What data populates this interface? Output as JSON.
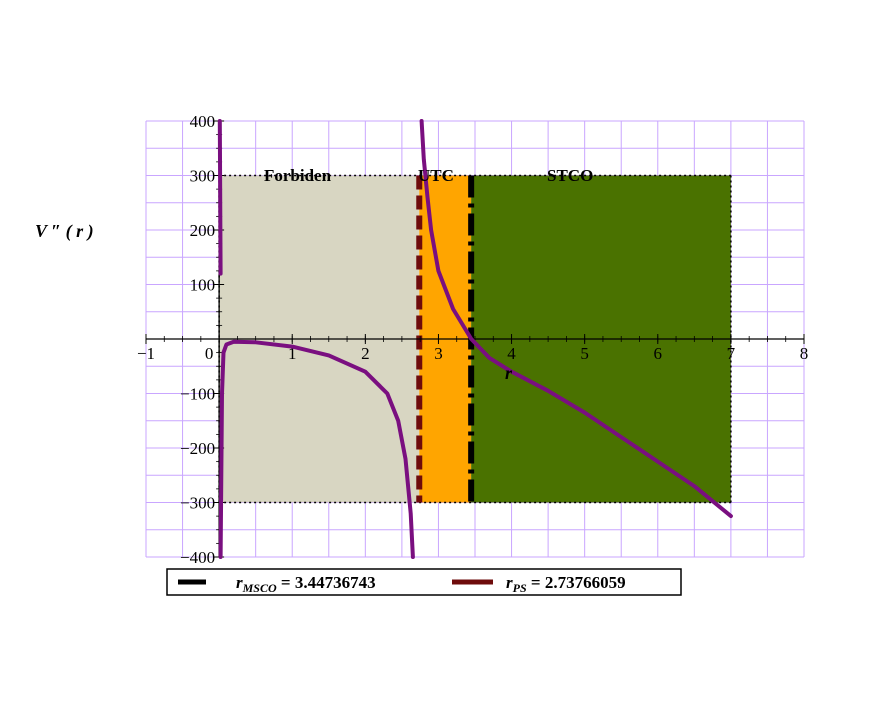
{
  "chart_data": {
    "type": "line",
    "xlabel": "r",
    "ylabel": "V ″ ( r )",
    "xlim": [
      -1,
      8
    ],
    "ylim": [
      -400,
      400
    ],
    "xticks": [
      -1,
      0,
      1,
      2,
      3,
      4,
      5,
      6,
      7,
      8
    ],
    "xtick_labels": [
      "−1",
      "0",
      "1",
      "2",
      "3",
      "4",
      "5",
      "6",
      "7",
      "8"
    ],
    "yticks": [
      -400,
      -300,
      -200,
      -100,
      100,
      200,
      300,
      400
    ],
    "ytick_labels": [
      "−400",
      "−300",
      "−200",
      "−100",
      "100",
      "200",
      "300",
      "400"
    ],
    "grid": true,
    "regions": [
      {
        "label": "Forbiden",
        "x": [
          0,
          2.73766059
        ],
        "y": [
          -300,
          300
        ],
        "color": "#d8d6c2"
      },
      {
        "label": "UTC",
        "x": [
          2.73766059,
          3.44736743
        ],
        "y": [
          -300,
          300
        ],
        "color": "#ffa500"
      },
      {
        "label": "STCO",
        "x": [
          3.44736743,
          7
        ],
        "y": [
          -300,
          300
        ],
        "color": "#4a7200"
      }
    ],
    "vertical_lines": [
      {
        "x": 2.73766059,
        "color": "#6e0b0b",
        "style": "dashed"
      },
      {
        "x": 3.44736743,
        "color": "#000000",
        "style": "dashdot"
      }
    ],
    "series": [
      {
        "color": "#7a0f80",
        "segments": [
          [
            [
              0.01,
              400
            ],
            [
              0.02,
              120
            ]
          ],
          [
            [
              0.02,
              -400
            ],
            [
              0.04,
              -100
            ],
            [
              0.06,
              -25
            ],
            [
              0.1,
              -10
            ],
            [
              0.2,
              -5
            ],
            [
              0.5,
              -6
            ],
            [
              1.0,
              -14
            ],
            [
              1.5,
              -30
            ],
            [
              2.0,
              -60
            ],
            [
              2.3,
              -100
            ],
            [
              2.45,
              -150
            ],
            [
              2.55,
              -220
            ],
            [
              2.62,
              -320
            ],
            [
              2.65,
              -400
            ]
          ],
          [
            [
              2.77,
              400
            ],
            [
              2.8,
              330
            ],
            [
              2.85,
              260
            ],
            [
              2.9,
              200
            ],
            [
              3.0,
              125
            ],
            [
              3.2,
              55
            ],
            [
              3.45,
              0
            ],
            [
              3.7,
              -35
            ],
            [
              4.0,
              -60
            ],
            [
              4.5,
              -95
            ],
            [
              5.0,
              -135
            ],
            [
              5.5,
              -180
            ],
            [
              6.0,
              -225
            ],
            [
              6.5,
              -270
            ],
            [
              7.0,
              -325
            ]
          ]
        ]
      }
    ],
    "legend": {
      "placement": "bottom-center",
      "entries": [
        {
          "symbol": "r",
          "subscript": "MSCO",
          "value": "= 3.44736743",
          "color": "#000000"
        },
        {
          "symbol": "r",
          "subscript": "PS",
          "value": "= 2.73766059",
          "color": "#6e0b0b"
        }
      ]
    }
  }
}
